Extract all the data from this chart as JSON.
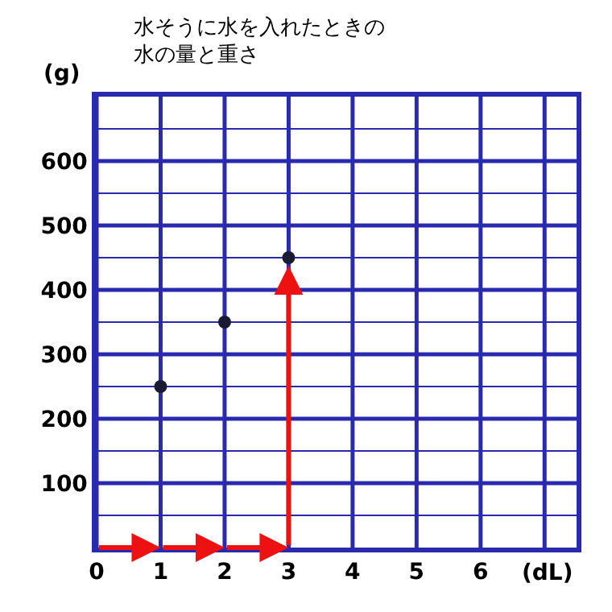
{
  "chart_data": {
    "type": "scatter",
    "title": "水そうに水を入れたときの水の量と重さ",
    "xlabel": "(dL)",
    "ylabel": "(g)",
    "x": [
      1,
      2,
      3
    ],
    "series": [
      {
        "color": "#1a1a33",
        "values": [
          250,
          350,
          450
        ]
      }
    ],
    "marker": "circle",
    "xlim": [
      0,
      7.5
    ],
    "xticks": [
      0,
      1,
      2,
      3,
      4,
      5,
      6,
      {
        "value": 7,
        "label": null
      }
    ],
    "ylim": [
      0,
      700
    ],
    "yticks": [
      {
        "value": 50,
        "label": null
      },
      100,
      {
        "value": 150,
        "label": null
      },
      200,
      {
        "value": 250,
        "label": null
      },
      300,
      {
        "value": 350,
        "label": null
      },
      400,
      {
        "value": 450,
        "label": null
      },
      500,
      {
        "value": 550,
        "label": null
      },
      600,
      {
        "value": 650,
        "label": null
      }
    ],
    "grid": true
  }
}
